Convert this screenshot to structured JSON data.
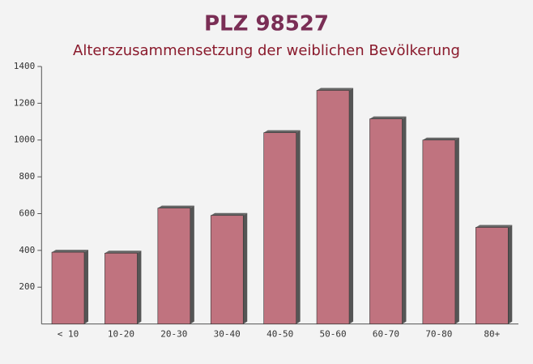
{
  "chart_data": {
    "type": "bar",
    "title": "PLZ 98527",
    "subtitle": "Alterszusammensetzung der weiblichen Bevölkerung",
    "categories": [
      "< 10",
      "10-20",
      "20-30",
      "30-40",
      "40-50",
      "50-60",
      "60-70",
      "70-80",
      "80+"
    ],
    "values": [
      390,
      385,
      630,
      590,
      1040,
      1270,
      1115,
      1000,
      525
    ],
    "color": "#c0737f",
    "ylim": [
      0,
      1400
    ],
    "yticks": [
      200,
      400,
      600,
      800,
      1000,
      1200,
      1400
    ]
  }
}
